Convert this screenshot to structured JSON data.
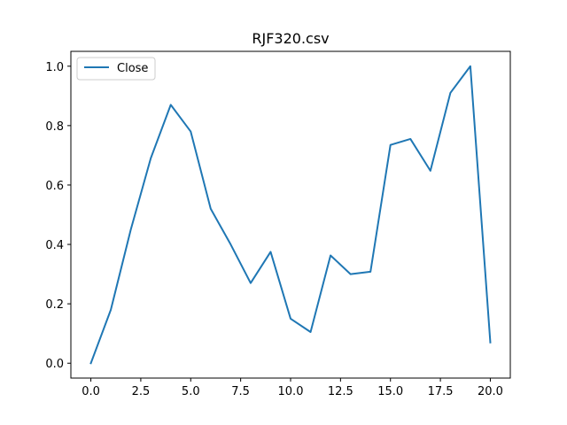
{
  "chart_data": {
    "type": "line",
    "title": "RJF320.csv",
    "xlabel": "",
    "ylabel": "",
    "x": [
      0,
      1,
      2,
      3,
      4,
      5,
      6,
      7,
      8,
      9,
      10,
      11,
      12,
      13,
      14,
      15,
      16,
      17,
      18,
      19,
      20
    ],
    "series": [
      {
        "name": "Close",
        "color": "#1f77b4",
        "values": [
          0.0,
          0.18,
          0.45,
          0.69,
          0.87,
          0.78,
          0.52,
          0.4,
          0.27,
          0.375,
          0.15,
          0.105,
          0.363,
          0.3,
          0.308,
          0.735,
          0.755,
          0.648,
          0.91,
          1.0,
          0.07
        ]
      }
    ],
    "xlim": [
      -1.0,
      21.0
    ],
    "ylim": [
      -0.05,
      1.05
    ],
    "x_ticks": [
      0.0,
      2.5,
      5.0,
      7.5,
      10.0,
      12.5,
      15.0,
      17.5,
      20.0
    ],
    "x_tick_labels": [
      "0.0",
      "2.5",
      "5.0",
      "7.5",
      "10.0",
      "12.5",
      "15.0",
      "17.5",
      "20.0"
    ],
    "y_ticks": [
      0.0,
      0.2,
      0.4,
      0.6,
      0.8,
      1.0
    ],
    "y_tick_labels": [
      "0.0",
      "0.2",
      "0.4",
      "0.6",
      "0.8",
      "1.0"
    ],
    "grid": false,
    "legend_position": "upper-left"
  }
}
